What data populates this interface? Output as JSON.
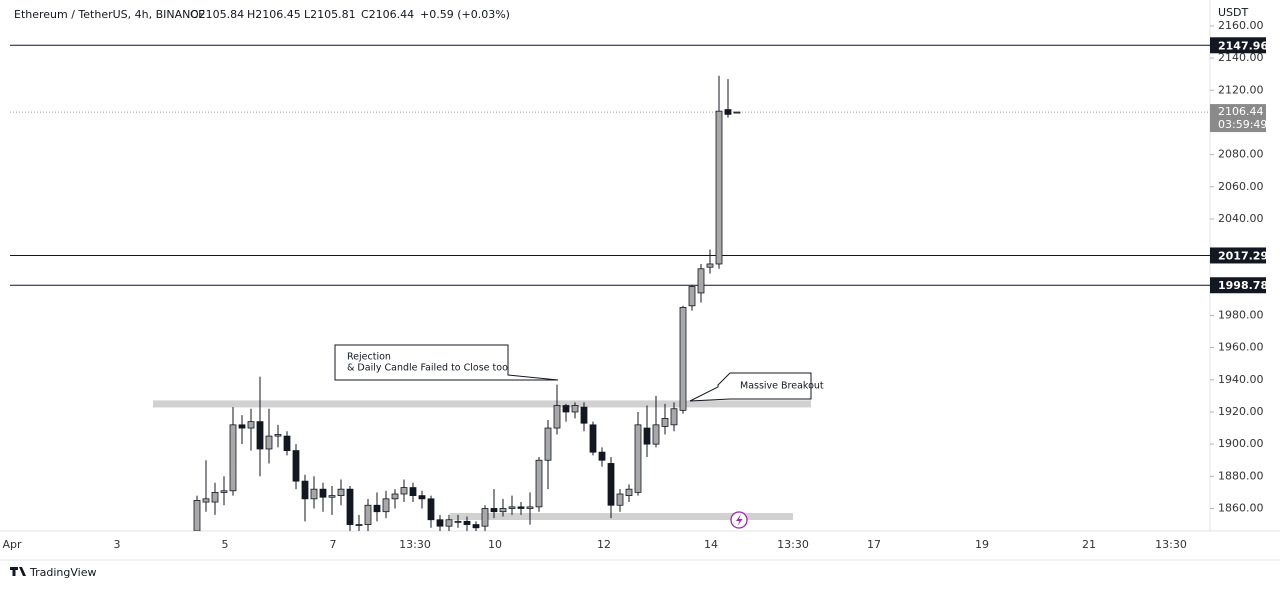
{
  "chart_data": {
    "type": "candlestick",
    "symbol": "Ethereum / TetherUS, 4h, BINANCE",
    "ohlc_legend": [
      "O2105.84",
      "H2106.45",
      "L2105.81",
      "C2106.44",
      "+0.59 (+0.03%)"
    ],
    "currency": "USDT",
    "x_labels": [
      "Apr",
      "3",
      "5",
      "7",
      "13:30",
      "10",
      "12",
      "14",
      "13:30",
      "17",
      "19",
      "21",
      "13:30"
    ],
    "open": [
      1846,
      1864,
      1864,
      1870,
      1871,
      1912,
      1910,
      1914,
      1897,
      1905,
      1905,
      1896,
      1877,
      1866,
      1872,
      1867,
      1868,
      1872,
      1850,
      1850,
      1862,
      1858,
      1866,
      1869,
      1873,
      1868,
      1866,
      1853,
      1849,
      1852,
      1852,
      1850,
      1849,
      1860,
      1858,
      1860,
      1861,
      1860,
      1861,
      1890,
      1910,
      1924,
      1920,
      1923,
      1912,
      1895,
      1888,
      1862,
      1868,
      1870,
      1910,
      1900,
      1911,
      1912,
      1921,
      1986,
      1994,
      2010,
      2012,
      2108,
      2105.84
    ],
    "high": [
      1868,
      1890,
      1876,
      1880,
      1923,
      1918,
      1922,
      1942,
      1922,
      1912,
      1908,
      1900,
      1881,
      1880,
      1876,
      1874,
      1878,
      1874,
      1856,
      1866,
      1870,
      1871,
      1872,
      1878,
      1876,
      1871,
      1868,
      1856,
      1856,
      1856,
      1855,
      1852,
      1862,
      1872,
      1866,
      1868,
      1864,
      1870,
      1892,
      1915,
      1937,
      1925,
      1926,
      1926,
      1914,
      1898,
      1892,
      1872,
      1875,
      1920,
      1924,
      1930,
      1925,
      1926,
      1986,
      1999,
      2012,
      2021,
      2129,
      2127,
      2106.45
    ],
    "low": [
      1840,
      1858,
      1856,
      1862,
      1868,
      1900,
      1896,
      1880,
      1888,
      1898,
      1893,
      1872,
      1852,
      1860,
      1858,
      1856,
      1862,
      1846,
      1846,
      1846,
      1852,
      1854,
      1860,
      1864,
      1864,
      1860,
      1848,
      1846,
      1846,
      1848,
      1846,
      1846,
      1846,
      1854,
      1855,
      1856,
      1856,
      1850,
      1858,
      1872,
      1906,
      1914,
      1916,
      1908,
      1893,
      1886,
      1854,
      1858,
      1864,
      1868,
      1892,
      1898,
      1906,
      1908,
      1919,
      1983,
      1988,
      2006,
      2009,
      2103,
      2105.81
    ],
    "close": [
      1865,
      1866,
      1870,
      1871,
      1912,
      1910,
      1914,
      1897,
      1905,
      1906,
      1896,
      1877,
      1866,
      1872,
      1867,
      1868,
      1872,
      1850,
      1850,
      1862,
      1858,
      1866,
      1869,
      1873,
      1868,
      1866,
      1853,
      1849,
      1853,
      1852,
      1850,
      1848,
      1860,
      1858,
      1860,
      1861,
      1860,
      1861,
      1890,
      1910,
      1924,
      1920,
      1924,
      1913,
      1895,
      1890,
      1862,
      1869,
      1872,
      1912,
      1900,
      1912,
      1916,
      1922,
      1985,
      1998,
      2009,
      2012,
      2107,
      2105,
      2106.44
    ],
    "ylim": [
      1846,
      2173
    ],
    "yticks": [
      {
        "value": 1860,
        "label": "1860.00"
      },
      {
        "value": 1880,
        "label": "1880.00"
      },
      {
        "value": 1900,
        "label": "1900.00"
      },
      {
        "value": 1920,
        "label": "1920.00"
      },
      {
        "value": 1940,
        "label": "1940.00"
      },
      {
        "value": 1960,
        "label": "1960.00"
      },
      {
        "value": 1980,
        "label": "1980.00"
      },
      {
        "value": 2040,
        "label": "2040.00"
      },
      {
        "value": 2060,
        "label": "2060.00"
      },
      {
        "value": 2080,
        "label": "2080.00"
      },
      {
        "value": 2120,
        "label": "2120.00"
      },
      {
        "value": 2140,
        "label": "2140.00"
      },
      {
        "value": 2160,
        "label": "2160.00"
      }
    ],
    "price_lines": [
      2147.96,
      2017.29,
      1998.78
    ],
    "current_price": 2106.44,
    "countdown": "03:59:49",
    "zones": [
      1925,
      1855
    ],
    "annotations": [
      {
        "lines": [
          "Rejection",
          "& Daily Candle Failed to Close too"
        ]
      },
      {
        "lines": [
          "Massive Breakout"
        ]
      }
    ],
    "brand": "TradingView"
  }
}
